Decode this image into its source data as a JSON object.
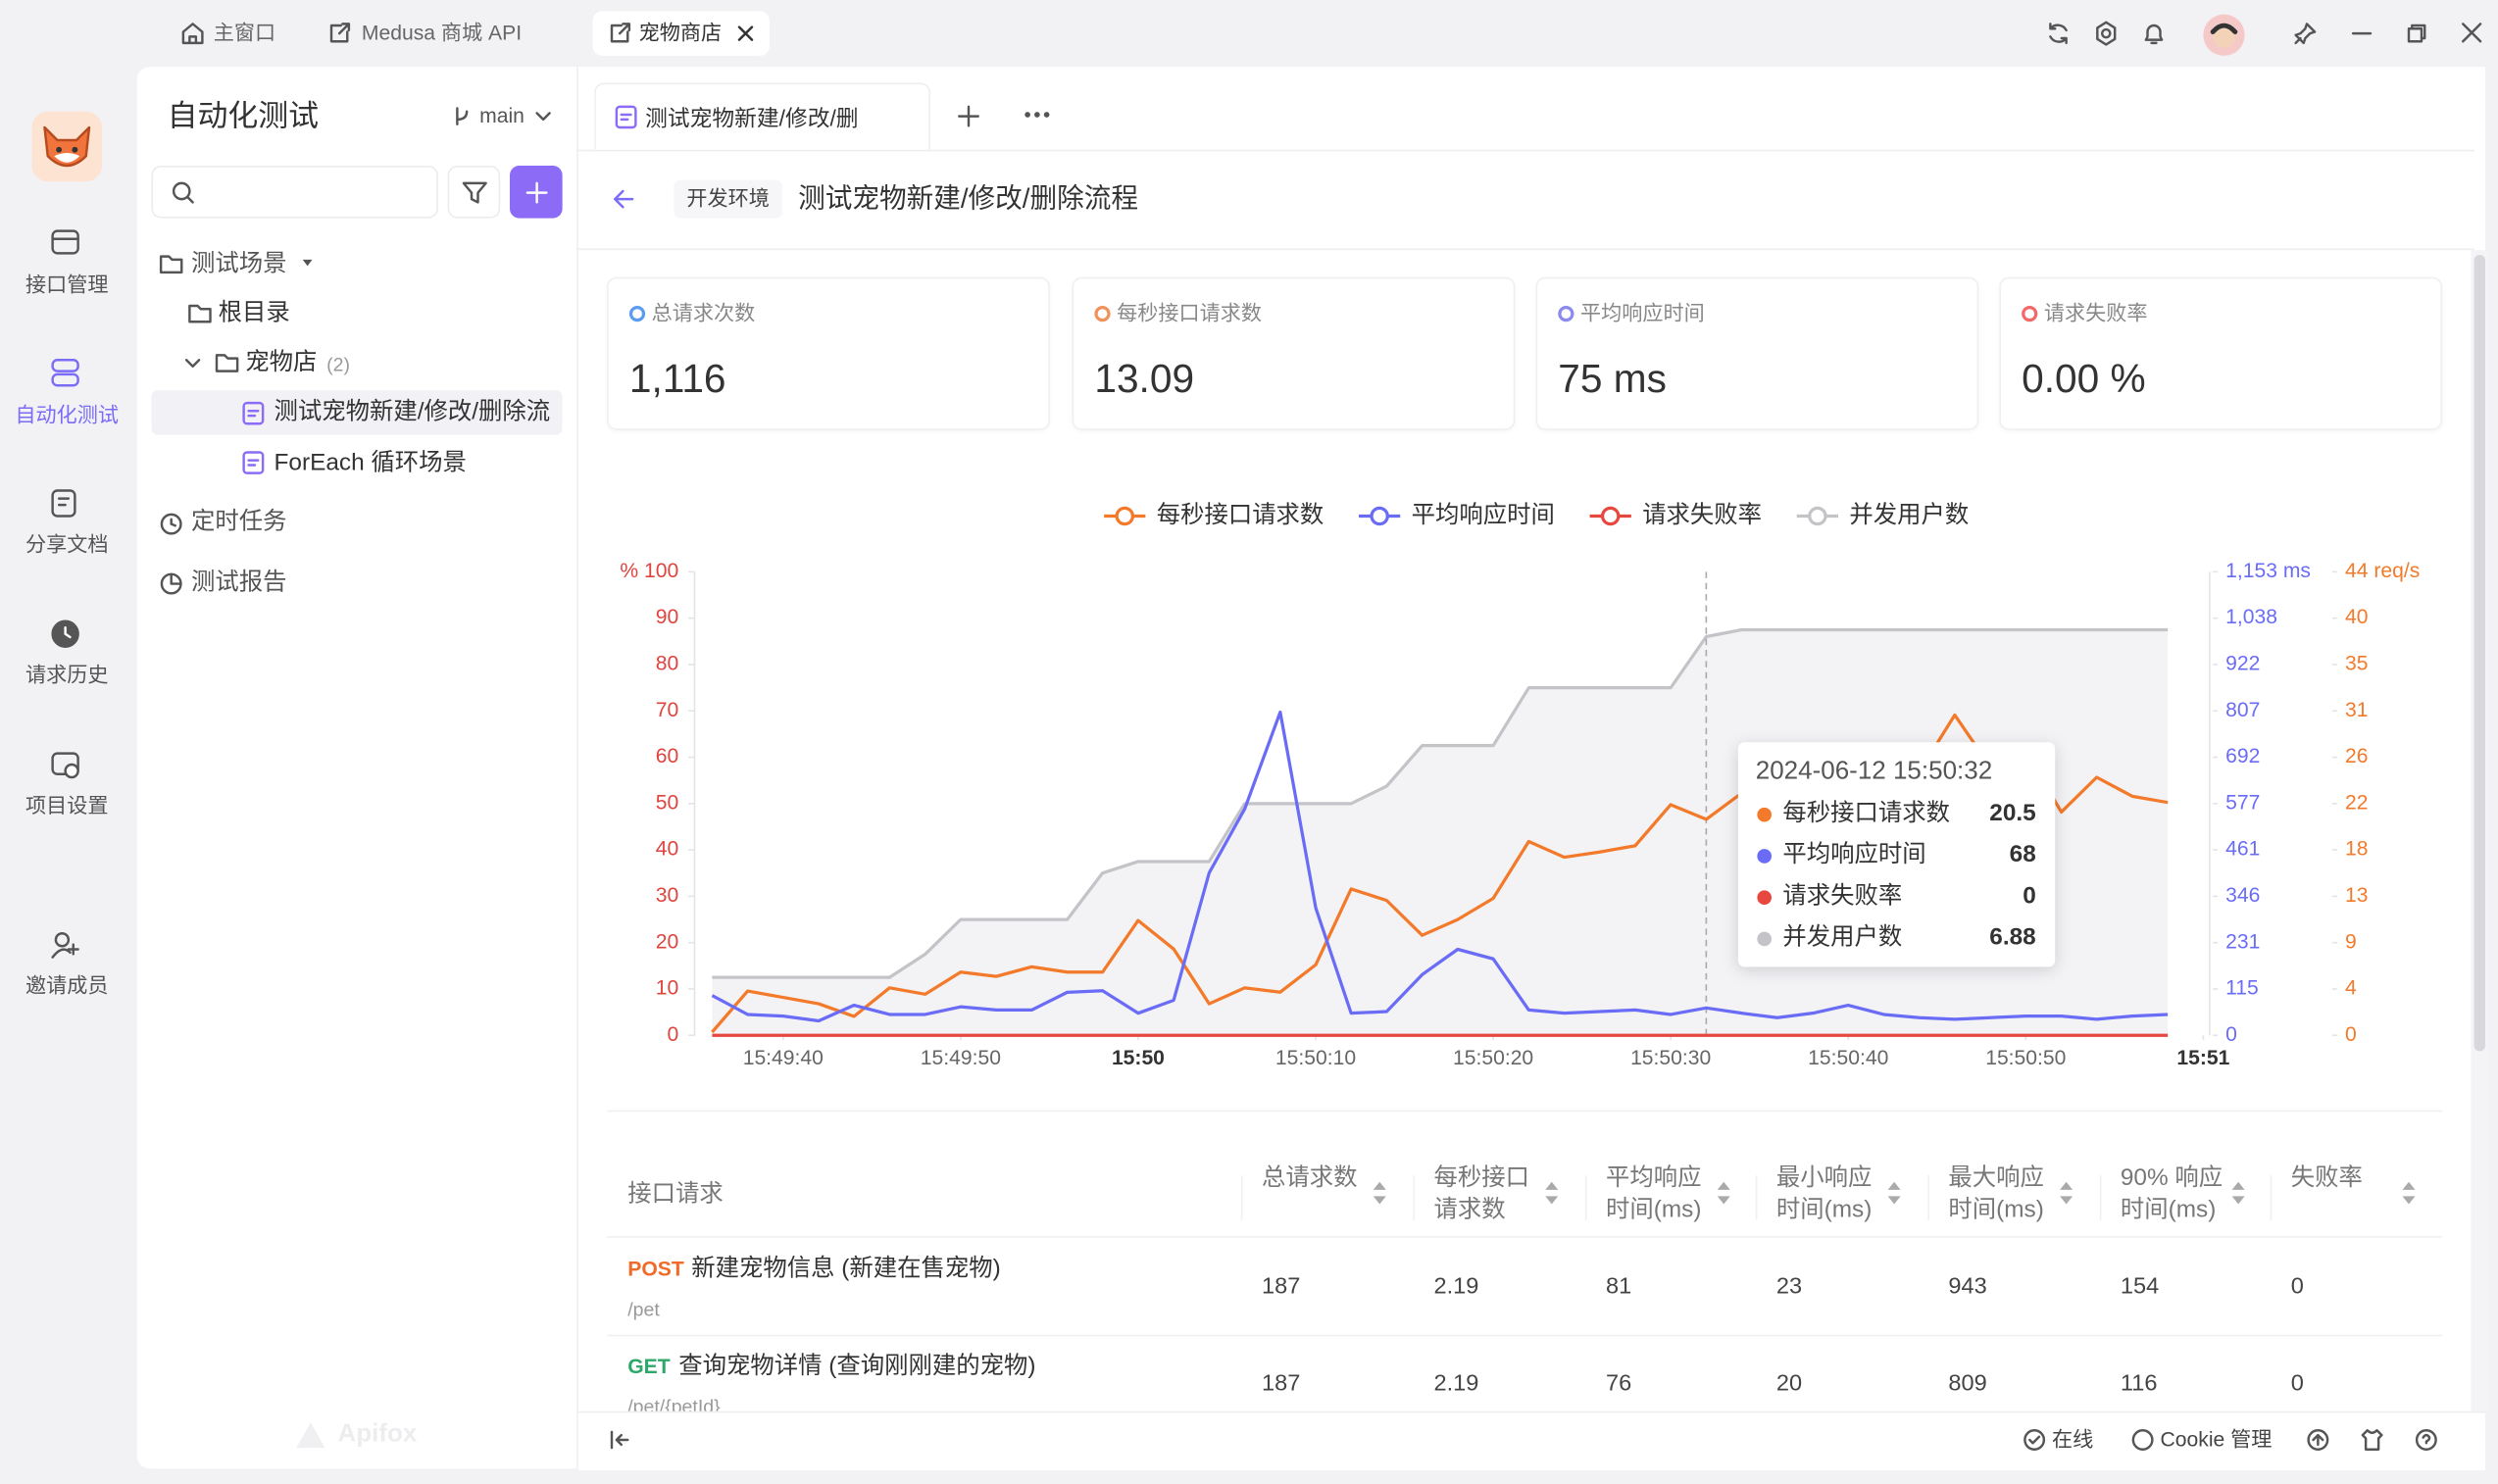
{
  "tabs": [
    "主窗口",
    "Medusa 商城 API",
    "宠物商店"
  ],
  "rail": [
    "接口管理",
    "自动化测试",
    "分享文档",
    "请求历史",
    "项目设置",
    "邀请成员"
  ],
  "sidebar": {
    "title": "自动化测试",
    "branch": "main",
    "tree": [
      {
        "label": "测试场景"
      },
      {
        "label": "根目录"
      },
      {
        "label": "宠物店",
        "count": "(2)"
      },
      {
        "label": "测试宠物新建/修改/删除流"
      },
      {
        "label": "ForEach 循环场景"
      }
    ],
    "sections": [
      "定时任务",
      "测试报告"
    ],
    "brand": "Apifox"
  },
  "editor_tab": "测试宠物新建/修改/删",
  "header": {
    "env": "开发环境",
    "title": "测试宠物新建/修改/删除流程"
  },
  "stats": [
    {
      "label": "总请求次数",
      "value": "1,116",
      "color": "#5b9cf0"
    },
    {
      "label": "每秒接口请求数",
      "value": "13.09",
      "color": "#f0935b"
    },
    {
      "label": "平均响应时间",
      "value": "75 ms",
      "color": "#8a8af0"
    },
    {
      "label": "请求失败率",
      "value": "0.00 %",
      "color": "#f06a6a"
    }
  ],
  "chart_data": {
    "type": "line",
    "x": [
      "15:49:36",
      "15:49:38",
      "15:49:40",
      "15:49:42",
      "15:49:44",
      "15:49:46",
      "15:49:48",
      "15:49:50",
      "15:49:52",
      "15:49:54",
      "15:49:56",
      "15:49:58",
      "15:50:00",
      "15:50:02",
      "15:50:04",
      "15:50:06",
      "15:50:08",
      "15:50:10",
      "15:50:12",
      "15:50:14",
      "15:50:16",
      "15:50:18",
      "15:50:20",
      "15:50:22",
      "15:50:24",
      "15:50:26",
      "15:50:28",
      "15:50:30",
      "15:50:32",
      "15:50:34",
      "15:50:36",
      "15:50:38",
      "15:50:40",
      "15:50:42",
      "15:50:44",
      "15:50:46",
      "15:50:48",
      "15:50:50",
      "15:50:52",
      "15:50:54",
      "15:50:56",
      "15:50:58"
    ],
    "xlim": [
      "15:49:36",
      "15:51:00"
    ],
    "xticks": [
      "15:49:40",
      "15:49:50",
      {
        "value": "15:50:00",
        "label": "15:50"
      },
      "15:50:10",
      "15:50:20",
      "15:50:30",
      "15:50:40",
      "15:50:50",
      {
        "value": "15:51:00",
        "label": "15:51"
      }
    ],
    "ylim": [
      0,
      100
    ],
    "yticks": [
      0,
      10,
      20,
      30,
      40,
      50,
      60,
      70,
      80,
      90,
      {
        "value": 100,
        "label": "% 100"
      }
    ],
    "y2lim": [
      0,
      1153
    ],
    "y2ticks": [
      0,
      {
        "value": 115.3,
        "label": "115"
      },
      {
        "value": 230.6,
        "label": "231"
      },
      {
        "value": 345.9,
        "label": "346"
      },
      {
        "value": 461.2,
        "label": "461"
      },
      {
        "value": 576.5,
        "label": "577"
      },
      {
        "value": 691.8,
        "label": "692"
      },
      {
        "value": 807.1,
        "label": "807"
      },
      {
        "value": 922.4,
        "label": "922"
      },
      {
        "value": 1037.7,
        "label": "1,038"
      },
      {
        "value": 1153,
        "label": "1,153 ms"
      }
    ],
    "y3lim": [
      0,
      44
    ],
    "y3ticks": [
      0,
      {
        "value": 4.4,
        "label": "4"
      },
      {
        "value": 8.8,
        "label": "9"
      },
      {
        "value": 13.2,
        "label": "13"
      },
      {
        "value": 17.6,
        "label": "18"
      },
      22,
      {
        "value": 26.4,
        "label": "26"
      },
      {
        "value": 30.8,
        "label": "31"
      },
      {
        "value": 35.2,
        "label": "35"
      },
      {
        "value": 39.6,
        "label": "40"
      },
      {
        "value": 44,
        "label": "44 req/s"
      }
    ],
    "y4lim": [
      0,
      8
    ],
    "series": [
      {
        "name": "每秒接口请求数",
        "color": "#f27a2a",
        "axis": "y3",
        "values": [
          0.3,
          4.2,
          3.6,
          3.0,
          1.8,
          4.5,
          3.9,
          6.0,
          5.6,
          6.5,
          6.0,
          6.0,
          10.9,
          8.2,
          3.0,
          4.5,
          4.1,
          6.7,
          13.9,
          12.8,
          9.5,
          11.0,
          13.0,
          18.4,
          16.9,
          17.4,
          18.0,
          21.9,
          20.5,
          23,
          24,
          25,
          24,
          26,
          25,
          30.4,
          25.5,
          27,
          21.2,
          24.5,
          22.7,
          22.1
        ]
      },
      {
        "name": "平均响应时间",
        "color": "#6a6cf6",
        "axis": "y2",
        "values": [
          99,
          52,
          48,
          36,
          75,
          52,
          52,
          71,
          63,
          63,
          107,
          111,
          55,
          87,
          404,
          563,
          804,
          317,
          55,
          59,
          151,
          214,
          190,
          63,
          55,
          59,
          63,
          52,
          68,
          55,
          44,
          55,
          75,
          52,
          44,
          40,
          44,
          48,
          48,
          40,
          48,
          52
        ]
      },
      {
        "name": "请求失败率",
        "color": "#e8473f",
        "axis": "y",
        "values": [
          0,
          0,
          0,
          0,
          0,
          0,
          0,
          0,
          0,
          0,
          0,
          0,
          0,
          0,
          0,
          0,
          0,
          0,
          0,
          0,
          0,
          0,
          0,
          0,
          0,
          0,
          0,
          0,
          0,
          0,
          0,
          0,
          0,
          0,
          0,
          0,
          0,
          0,
          0,
          0,
          0,
          0
        ]
      },
      {
        "name": "并发用户数",
        "color": "#c4c4c8",
        "fill": "#f3f3f6",
        "axis": "y4",
        "values": [
          1,
          1,
          1,
          1,
          1,
          1,
          1.4,
          2,
          2,
          2,
          2,
          2.8,
          3,
          3,
          3,
          4,
          4,
          4,
          4,
          4.3,
          5,
          5,
          5,
          6,
          6,
          6,
          6,
          6,
          6.88,
          7,
          7,
          7,
          7,
          7,
          7,
          7,
          7,
          7,
          7,
          7,
          7,
          7
        ]
      }
    ],
    "tooltip": {
      "title": "2024-06-12 15:50:32"
    }
  },
  "table": {
    "columns": [
      "接口请求",
      "总请求数",
      "每秒接口请求数",
      "平均响应时间(ms)",
      "最小响应时间(ms)",
      "最大响应时间(ms)",
      "90% 响应时间(ms)",
      "失败率"
    ],
    "rows": [
      {
        "method": "POST",
        "name": "新建宠物信息 (新建在售宠物)",
        "path": "/pet",
        "cells": [
          187,
          2.19,
          81,
          23,
          943,
          154,
          0
        ]
      },
      {
        "method": "GET",
        "name": "查询宠物详情 (查询刚刚建的宠物)",
        "path": "/pet/{petId}",
        "cells": [
          187,
          2.19,
          76,
          20,
          809,
          116,
          0
        ]
      }
    ]
  },
  "footer": [
    "在线",
    "Cookie 管理"
  ]
}
